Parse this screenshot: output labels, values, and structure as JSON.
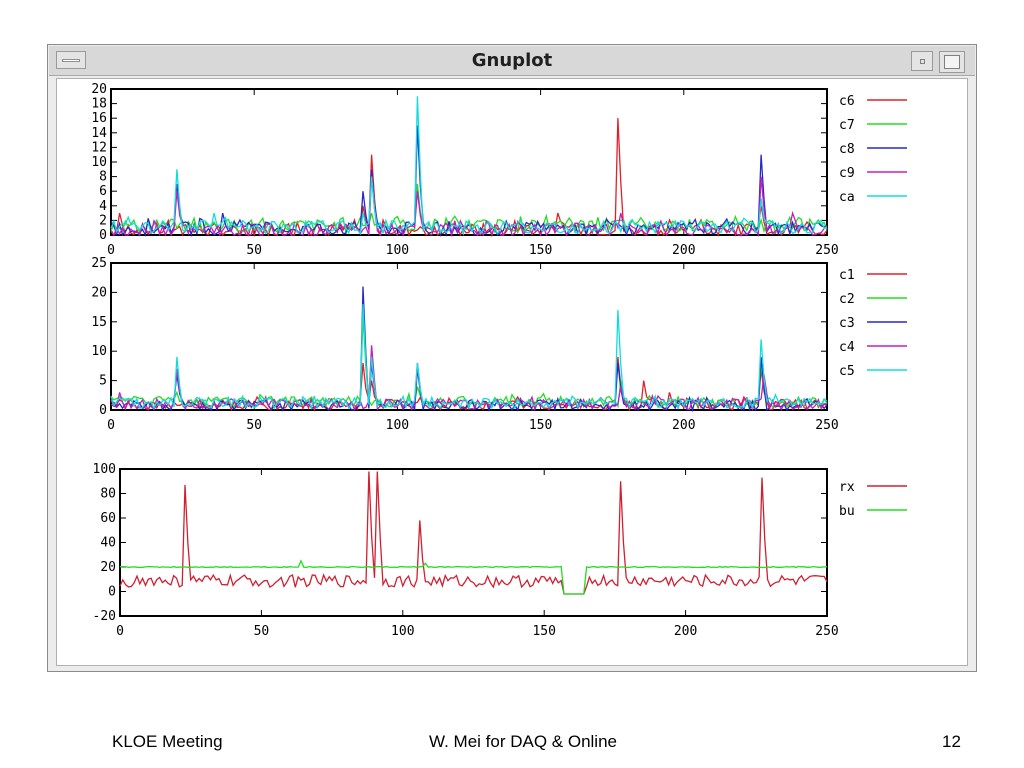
{
  "window": {
    "title": "Gnuplot"
  },
  "footer": {
    "left": "KLOE Meeting",
    "center": "W. Mei for DAQ & Online",
    "right": "12"
  },
  "chart_data": [
    {
      "type": "line",
      "title": "",
      "xlim": [
        0,
        250
      ],
      "ylim": [
        0,
        20
      ],
      "xticks": [
        0,
        50,
        100,
        150,
        200,
        250
      ],
      "yticks": [
        0,
        2,
        4,
        6,
        8,
        10,
        12,
        14,
        16,
        18,
        20
      ],
      "legend_position": "right",
      "series": [
        {
          "name": "c6",
          "color": "#e0202a",
          "baseline": 0.6,
          "spikes": [
            [
              3,
              3
            ],
            [
              88,
              4
            ],
            [
              91,
              11
            ],
            [
              156,
              3
            ],
            [
              177,
              16
            ],
            [
              227,
              4
            ]
          ]
        },
        {
          "name": "c7",
          "color": "#22dd22",
          "baseline": 1.2,
          "spikes": [
            [
              22,
              2
            ],
            [
              40,
              2
            ],
            [
              91,
              3
            ],
            [
              107,
              7
            ],
            [
              178,
              2
            ],
            [
              230,
              2
            ]
          ]
        },
        {
          "name": "c8",
          "color": "#2828c8",
          "baseline": 0.8,
          "spikes": [
            [
              23,
              7
            ],
            [
              39,
              3
            ],
            [
              88,
              6
            ],
            [
              91,
              9
            ],
            [
              107,
              15
            ],
            [
              227,
              11
            ]
          ]
        },
        {
          "name": "c9",
          "color": "#c020c0",
          "baseline": 0.5,
          "spikes": [
            [
              23,
              6
            ],
            [
              91,
              8
            ],
            [
              107,
              6
            ],
            [
              178,
              3
            ],
            [
              227,
              8
            ],
            [
              238,
              3
            ]
          ]
        },
        {
          "name": "ca",
          "color": "#10dede",
          "baseline": 1.0,
          "spikes": [
            [
              23,
              9
            ],
            [
              36,
              3
            ],
            [
              88,
              3
            ],
            [
              91,
              8
            ],
            [
              107,
              19
            ],
            [
              227,
              5
            ],
            [
              248,
              2
            ]
          ]
        }
      ]
    },
    {
      "type": "line",
      "title": "",
      "xlim": [
        0,
        250
      ],
      "ylim": [
        0,
        25
      ],
      "xticks": [
        0,
        50,
        100,
        150,
        200,
        250
      ],
      "yticks": [
        0,
        5,
        10,
        15,
        20,
        25
      ],
      "legend_position": "right",
      "series": [
        {
          "name": "c1",
          "color": "#e0202a",
          "baseline": 0.8,
          "spikes": [
            [
              88,
              8
            ],
            [
              91,
              5
            ],
            [
              177,
              9
            ],
            [
              186,
              5
            ],
            [
              195,
              3
            ],
            [
              227,
              7
            ]
          ]
        },
        {
          "name": "c2",
          "color": "#22dd22",
          "baseline": 1.3,
          "spikes": [
            [
              23,
              3
            ],
            [
              40,
              2
            ],
            [
              88,
              16
            ],
            [
              107,
              4
            ],
            [
              178,
              5
            ],
            [
              227,
              8
            ]
          ]
        },
        {
          "name": "c3",
          "color": "#2828c8",
          "baseline": 0.7,
          "spikes": [
            [
              23,
              6
            ],
            [
              88,
              21
            ],
            [
              91,
              8
            ],
            [
              107,
              7
            ],
            [
              177,
              8
            ],
            [
              227,
              9
            ]
          ]
        },
        {
          "name": "c4",
          "color": "#c020c0",
          "baseline": 0.9,
          "spikes": [
            [
              3,
              3
            ],
            [
              23,
              7
            ],
            [
              91,
              11
            ],
            [
              107,
              8
            ],
            [
              178,
              4
            ],
            [
              228,
              6
            ]
          ]
        },
        {
          "name": "c5",
          "color": "#10dede",
          "baseline": 1.1,
          "spikes": [
            [
              23,
              9
            ],
            [
              88,
              18
            ],
            [
              91,
              9
            ],
            [
              107,
              8
            ],
            [
              177,
              17
            ],
            [
              227,
              12
            ]
          ]
        }
      ]
    },
    {
      "type": "line",
      "title": "",
      "xlim": [
        0,
        250
      ],
      "ylim": [
        -20,
        100
      ],
      "xticks": [
        0,
        50,
        100,
        150,
        200,
        250
      ],
      "yticks": [
        -20,
        0,
        20,
        40,
        60,
        80,
        100
      ],
      "legend_position": "right",
      "series": [
        {
          "name": "rx",
          "color": "#d02030",
          "baseline": 8,
          "spikes": [
            [
              23,
              87
            ],
            [
              88,
              98
            ],
            [
              91,
              98
            ],
            [
              106,
              58
            ],
            [
              177,
              90
            ],
            [
              227,
              93
            ]
          ],
          "dip": [
            157,
            164,
            -2
          ]
        },
        {
          "name": "bu",
          "color": "#22dd22",
          "baseline": 20,
          "spikes": [
            [
              64,
              25
            ],
            [
              108,
              23
            ]
          ],
          "dip": [
            157,
            164,
            -2
          ]
        }
      ]
    }
  ]
}
